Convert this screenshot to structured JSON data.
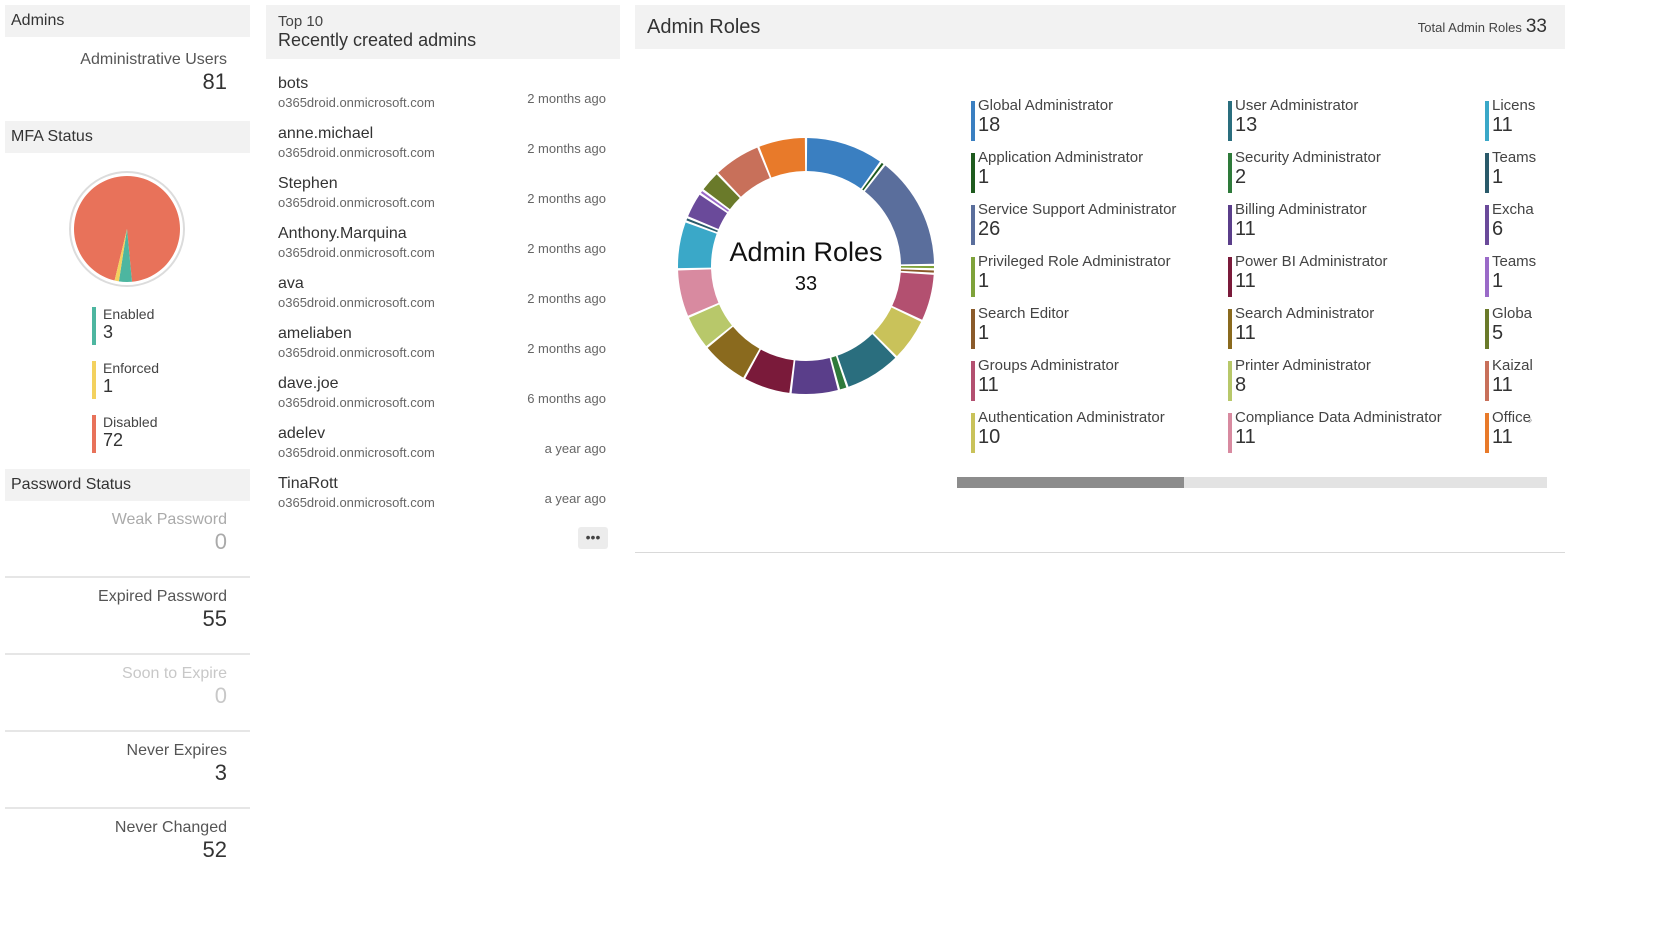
{
  "admins": {
    "header": "Admins",
    "label": "Administrative Users",
    "value": "81"
  },
  "mfa": {
    "header": "MFA Status",
    "items": [
      {
        "label": "Enabled",
        "value": "3",
        "count": 3,
        "color": "#4db6a0"
      },
      {
        "label": "Enforced",
        "value": "1",
        "count": 1,
        "color": "#f3d15e"
      },
      {
        "label": "Disabled",
        "value": "72",
        "count": 72,
        "color": "#e8725a"
      }
    ]
  },
  "password": {
    "header": "Password Status",
    "items": [
      {
        "label": "Weak Password",
        "value": "0"
      },
      {
        "label": "Expired Password",
        "value": "55"
      },
      {
        "label": "Soon to Expire",
        "value": "0"
      },
      {
        "label": "Never Expires",
        "value": "3"
      },
      {
        "label": "Never Changed",
        "value": "52"
      }
    ]
  },
  "recent": {
    "top": "Top 10",
    "title": "Recently created admins",
    "more_label": "•••",
    "rows": [
      {
        "name": "bots",
        "domain": "o365droid.onmicrosoft.com",
        "time": "2 months ago"
      },
      {
        "name": "anne.michael",
        "domain": "o365droid.onmicrosoft.com",
        "time": "2 months ago"
      },
      {
        "name": "Stephen",
        "domain": "o365droid.onmicrosoft.com",
        "time": "2 months ago"
      },
      {
        "name": "Anthony.Marquina",
        "domain": "o365droid.onmicrosoft.com",
        "time": "2 months ago"
      },
      {
        "name": "ava",
        "domain": "o365droid.onmicrosoft.com",
        "time": "2 months ago"
      },
      {
        "name": "ameliaben",
        "domain": "o365droid.onmicrosoft.com",
        "time": "2 months ago"
      },
      {
        "name": "dave.joe",
        "domain": "o365droid.onmicrosoft.com",
        "time": "6 months ago"
      },
      {
        "name": "adelev",
        "domain": "o365droid.onmicrosoft.com",
        "time": "a year ago"
      },
      {
        "name": "TinaRott",
        "domain": "o365droid.onmicrosoft.com",
        "time": "a year ago"
      }
    ]
  },
  "roles": {
    "title": "Admin Roles",
    "total_label": "Total Admin Roles",
    "total_value": "33",
    "center_title": "Admin Roles",
    "center_value": "33",
    "scroll_arrow": "›",
    "items": [
      {
        "name": "Global Administrator",
        "value": "18",
        "color": "#3a7fc1"
      },
      {
        "name": "Application Administrator",
        "value": "1",
        "color": "#1e5a1e"
      },
      {
        "name": "Service Support Administrator",
        "value": "26",
        "color": "#5a6e9c"
      },
      {
        "name": "Privileged Role Administrator",
        "value": "1",
        "color": "#7ea23a"
      },
      {
        "name": "Search Editor",
        "value": "1",
        "color": "#8a5a2a"
      },
      {
        "name": "Groups Administrator",
        "value": "11",
        "color": "#b35070"
      },
      {
        "name": "Authentication Administrator",
        "value": "10",
        "color": "#c9c25a"
      },
      {
        "name": "User Administrator",
        "value": "13",
        "color": "#2a6e7e"
      },
      {
        "name": "Security Administrator",
        "value": "2",
        "color": "#2e7a3a"
      },
      {
        "name": "Billing Administrator",
        "value": "11",
        "color": "#5a3e8a"
      },
      {
        "name": "Power BI Administrator",
        "value": "11",
        "color": "#7a1a3a"
      },
      {
        "name": "Search Administrator",
        "value": "11",
        "color": "#8a6a1e"
      },
      {
        "name": "Printer Administrator",
        "value": "8",
        "color": "#b8c86a"
      },
      {
        "name": "Compliance Data Administrator",
        "value": "11",
        "color": "#d88aa0"
      },
      {
        "name": "Licens",
        "value": "11",
        "color": "#3aa8c8"
      },
      {
        "name": "Teams",
        "value": "1",
        "color": "#2a5a6a"
      },
      {
        "name": "Excha",
        "value": "6",
        "color": "#6a4a9a"
      },
      {
        "name": "Teams",
        "value": "1",
        "color": "#9a6ac8"
      },
      {
        "name": "Globa",
        "value": "5",
        "color": "#6a7a2a"
      },
      {
        "name": "Kaizal",
        "value": "11",
        "color": "#c8705a"
      },
      {
        "name": "Office",
        "value": "11",
        "color": "#e87a2a"
      }
    ]
  },
  "chart_data": [
    {
      "type": "pie",
      "categories": [
        "Enabled",
        "Enforced",
        "Disabled"
      ],
      "values": [
        3,
        1,
        72
      ]
    },
    {
      "type": "pie",
      "title": "Admin Roles",
      "categories": [
        "Global Administrator",
        "Application Administrator",
        "Service Support Administrator",
        "Privileged Role Administrator",
        "Search Editor",
        "Groups Administrator",
        "Authentication Administrator",
        "User Administrator",
        "Security Administrator",
        "Billing Administrator",
        "Power BI Administrator",
        "Search Administrator",
        "Printer Administrator",
        "Compliance Data Administrator",
        "Licens",
        "Teams",
        "Excha",
        "Teams",
        "Globa",
        "Kaizal",
        "Office"
      ],
      "values": [
        18,
        1,
        26,
        1,
        1,
        11,
        10,
        13,
        2,
        11,
        11,
        11,
        8,
        11,
        11,
        1,
        6,
        1,
        5,
        11,
        11
      ]
    }
  ]
}
